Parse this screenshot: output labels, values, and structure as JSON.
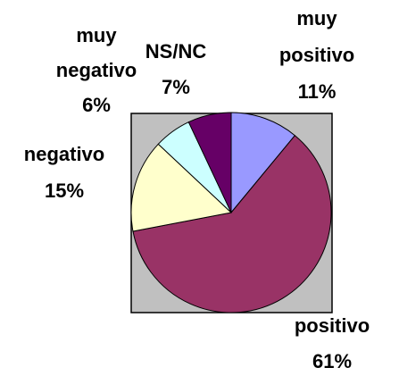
{
  "chart_data": {
    "type": "pie",
    "categories": [
      "muy positivo",
      "positivo",
      "negativo",
      "muy negativo",
      "NS/NC"
    ],
    "values": [
      11,
      61,
      15,
      6,
      7
    ],
    "value_labels": [
      "11%",
      "61%",
      "15%",
      "6%",
      "7%"
    ],
    "colors": [
      "#9999ff",
      "#993366",
      "#ffffcc",
      "#ccffff",
      "#660066"
    ]
  }
}
